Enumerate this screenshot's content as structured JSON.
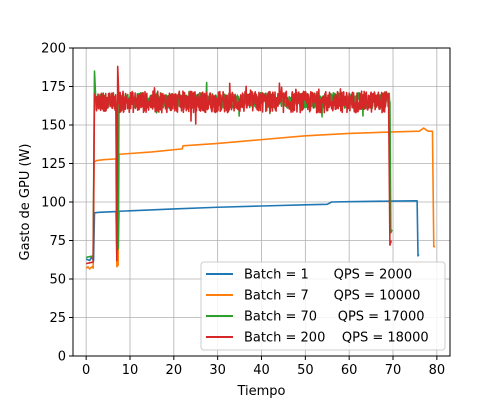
{
  "chart_data": {
    "type": "line",
    "title": "",
    "xlabel": "Tiempo",
    "ylabel": "Gasto de GPU (W)",
    "xlim": [
      -3,
      83
    ],
    "ylim": [
      0,
      200
    ],
    "x_ticks": [
      0,
      10,
      20,
      30,
      40,
      50,
      60,
      70,
      80
    ],
    "y_ticks": [
      0,
      25,
      50,
      75,
      100,
      125,
      150,
      175,
      200
    ],
    "grid": true,
    "legend_position": "lower-right",
    "series": [
      {
        "name": "Batch = 1      QPS = 2000",
        "color": "#1f77b4",
        "points": [
          [
            0,
            63
          ],
          [
            0.8,
            62
          ],
          [
            1.2,
            64
          ],
          [
            1.7,
            62
          ],
          [
            1.9,
            93
          ],
          [
            3,
            93.3
          ],
          [
            6.8,
            93.8
          ],
          [
            7.0,
            65
          ],
          [
            7.3,
            66
          ],
          [
            7.5,
            94
          ],
          [
            10,
            94.3
          ],
          [
            20,
            95.5
          ],
          [
            30,
            96.6
          ],
          [
            40,
            97.4
          ],
          [
            50,
            98.2
          ],
          [
            55,
            98.5
          ],
          [
            56,
            100
          ],
          [
            60,
            100.2
          ],
          [
            70,
            100.6
          ],
          [
            75.5,
            100.8
          ],
          [
            75.7,
            65
          ],
          [
            75.9,
            66
          ]
        ],
        "noise_spans": []
      },
      {
        "name": "Batch = 7      QPS = 10000",
        "color": "#ff7f0e",
        "points": [
          [
            0,
            57
          ],
          [
            0.4,
            58
          ],
          [
            0.8,
            56.5
          ],
          [
            1.3,
            58
          ],
          [
            1.6,
            57
          ],
          [
            1.8,
            126
          ],
          [
            2.5,
            127
          ],
          [
            4,
            127.5
          ],
          [
            6.8,
            128
          ],
          [
            7.0,
            58
          ],
          [
            7.3,
            59
          ],
          [
            7.5,
            131
          ],
          [
            10,
            131.5
          ],
          [
            15,
            132.5
          ],
          [
            21.9,
            134.5
          ],
          [
            22.1,
            136.5
          ],
          [
            30,
            138
          ],
          [
            40,
            140.5
          ],
          [
            50,
            143
          ],
          [
            60,
            144.5
          ],
          [
            70,
            145.5
          ],
          [
            76,
            146
          ],
          [
            77,
            148
          ],
          [
            78,
            146
          ],
          [
            79,
            146
          ],
          [
            79.3,
            71
          ],
          [
            79.6,
            71
          ]
        ],
        "noise_spans": []
      },
      {
        "name": "Batch = 70     QPS = 17000",
        "color": "#2ca02c",
        "points": [
          [
            0,
            64
          ],
          [
            1.6,
            65
          ],
          [
            1.9,
            185
          ],
          [
            2.3,
            160
          ],
          [
            6.8,
            165
          ],
          [
            7.0,
            68
          ],
          [
            7.3,
            70
          ],
          [
            7.5,
            170
          ],
          [
            69.3,
            165
          ],
          [
            69.5,
            80
          ],
          [
            69.8,
            82
          ]
        ],
        "noise_spans": [
          [
            2.3,
            6.8,
            166,
            5
          ],
          [
            7.5,
            69.3,
            166,
            5
          ]
        ]
      },
      {
        "name": "Batch = 200    QPS = 18000",
        "color": "#d62728",
        "points": [
          [
            0,
            60
          ],
          [
            1.6,
            61
          ],
          [
            1.9,
            170
          ],
          [
            2.3,
            165
          ],
          [
            6.8,
            163
          ],
          [
            7.0,
            62
          ],
          [
            7.2,
            188
          ],
          [
            7.5,
            164
          ],
          [
            69.0,
            164
          ],
          [
            69.3,
            72
          ],
          [
            69.6,
            75
          ]
        ],
        "noise_spans": [
          [
            2.3,
            6.8,
            165,
            6
          ],
          [
            7.5,
            69.0,
            165,
            7
          ]
        ]
      }
    ]
  }
}
